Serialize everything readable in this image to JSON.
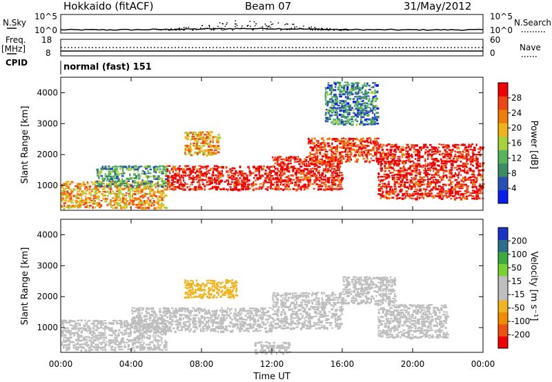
{
  "header": {
    "title": "Hokkaido (fitACF)",
    "beam": "Beam 07",
    "date": "31/May/2012"
  },
  "strip_labels": {
    "nsky": "N.Sky",
    "nsearch": "N.Search",
    "freq": "Freq.",
    "freq_unit": "[MHz]",
    "nave": "Nave",
    "cpid": "CPID",
    "cpid_value": "normal (fast) 151"
  },
  "strip_ticks": {
    "nsky_top": "10^5",
    "nsky_bottom": "10^0",
    "nsearch_top": "10^5",
    "nsearch_bottom": "10^0",
    "freq_top": "18",
    "freq_bottom": "8",
    "nave_top": "60",
    "nave_bottom": "0"
  },
  "colors": {
    "power_scale": [
      "#0a1cf0",
      "#2850b4",
      "#3c8c64",
      "#58b45a",
      "#a8d23c",
      "#f0b418",
      "#f07d0a",
      "#f04614",
      "#f00000"
    ],
    "velocity_scale": [
      "#f00000",
      "#f05010",
      "#f08c00",
      "#f0b420",
      "#bebebe",
      "#bebebe",
      "#78d232",
      "#3caa3c",
      "#2d6e8c",
      "#1a32c8"
    ]
  },
  "chart_data": [
    {
      "type": "heatmap",
      "title": "",
      "xlabel": "Time UT",
      "ylabel": "Slant Range [km]",
      "x_ticks": [
        "00:00",
        "04:00",
        "08:00",
        "12:00",
        "16:00",
        "20:00",
        "00:00"
      ],
      "y_ticks": [
        "1000",
        "2000",
        "3000",
        "4000"
      ],
      "ylim": [
        200,
        4500
      ],
      "colorbar_label": "Power [dB]",
      "colorbar_ticks": [
        "4",
        "8",
        "12",
        "16",
        "20",
        "24",
        "28"
      ],
      "color_range": [
        0,
        30
      ],
      "echo_bands": [
        {
          "t_start": 0,
          "t_end": 6,
          "r_start": 300,
          "r_end": 1200,
          "value": 20
        },
        {
          "t_start": 2,
          "t_end": 6,
          "r_start": 1000,
          "r_end": 1700,
          "value": 10
        },
        {
          "t_start": 6,
          "t_end": 12,
          "r_start": 900,
          "r_end": 1700,
          "value": 28
        },
        {
          "t_start": 7,
          "t_end": 9,
          "r_start": 2000,
          "r_end": 2800,
          "value": 20
        },
        {
          "t_start": 12,
          "t_end": 16,
          "r_start": 900,
          "r_end": 2000,
          "value": 28
        },
        {
          "t_start": 14,
          "t_end": 18,
          "r_start": 1800,
          "r_end": 2600,
          "value": 26
        },
        {
          "t_start": 18,
          "t_end": 24,
          "r_start": 600,
          "r_end": 2400,
          "value": 28
        },
        {
          "t_start": 15,
          "t_end": 18,
          "r_start": 3000,
          "r_end": 4400,
          "value": 8
        }
      ]
    },
    {
      "type": "heatmap",
      "title": "",
      "xlabel": "Time UT",
      "ylabel": "Slant Range [km]",
      "x_ticks": [
        "00:00",
        "04:00",
        "08:00",
        "12:00",
        "16:00",
        "20:00",
        "00:00"
      ],
      "y_ticks": [
        "1000",
        "2000",
        "3000",
        "4000"
      ],
      "ylim": [
        200,
        4500
      ],
      "colorbar_label": "Velocity [m s⁻¹]",
      "colorbar_ticks": [
        "200",
        "100",
        "50",
        "15",
        "-15",
        "-50",
        "-100",
        "-200"
      ],
      "color_range": [
        -250,
        250
      ],
      "echo_bands": [
        {
          "t_start": 0,
          "t_end": 6,
          "r_start": 300,
          "r_end": 1300,
          "value": 0
        },
        {
          "t_start": 4,
          "t_end": 12,
          "r_start": 900,
          "r_end": 1700,
          "value": 0
        },
        {
          "t_start": 12,
          "t_end": 16,
          "r_start": 1000,
          "r_end": 2200,
          "value": 0
        },
        {
          "t_start": 16,
          "t_end": 19,
          "r_start": 1800,
          "r_end": 2700,
          "value": 20
        },
        {
          "t_start": 18,
          "t_end": 22,
          "r_start": 700,
          "r_end": 1800,
          "value": 30
        },
        {
          "t_start": 11,
          "t_end": 13,
          "r_start": 200,
          "r_end": 600,
          "value": 40
        },
        {
          "t_start": 7,
          "t_end": 10,
          "r_start": 2000,
          "r_end": 2600,
          "value": -60
        }
      ]
    }
  ]
}
